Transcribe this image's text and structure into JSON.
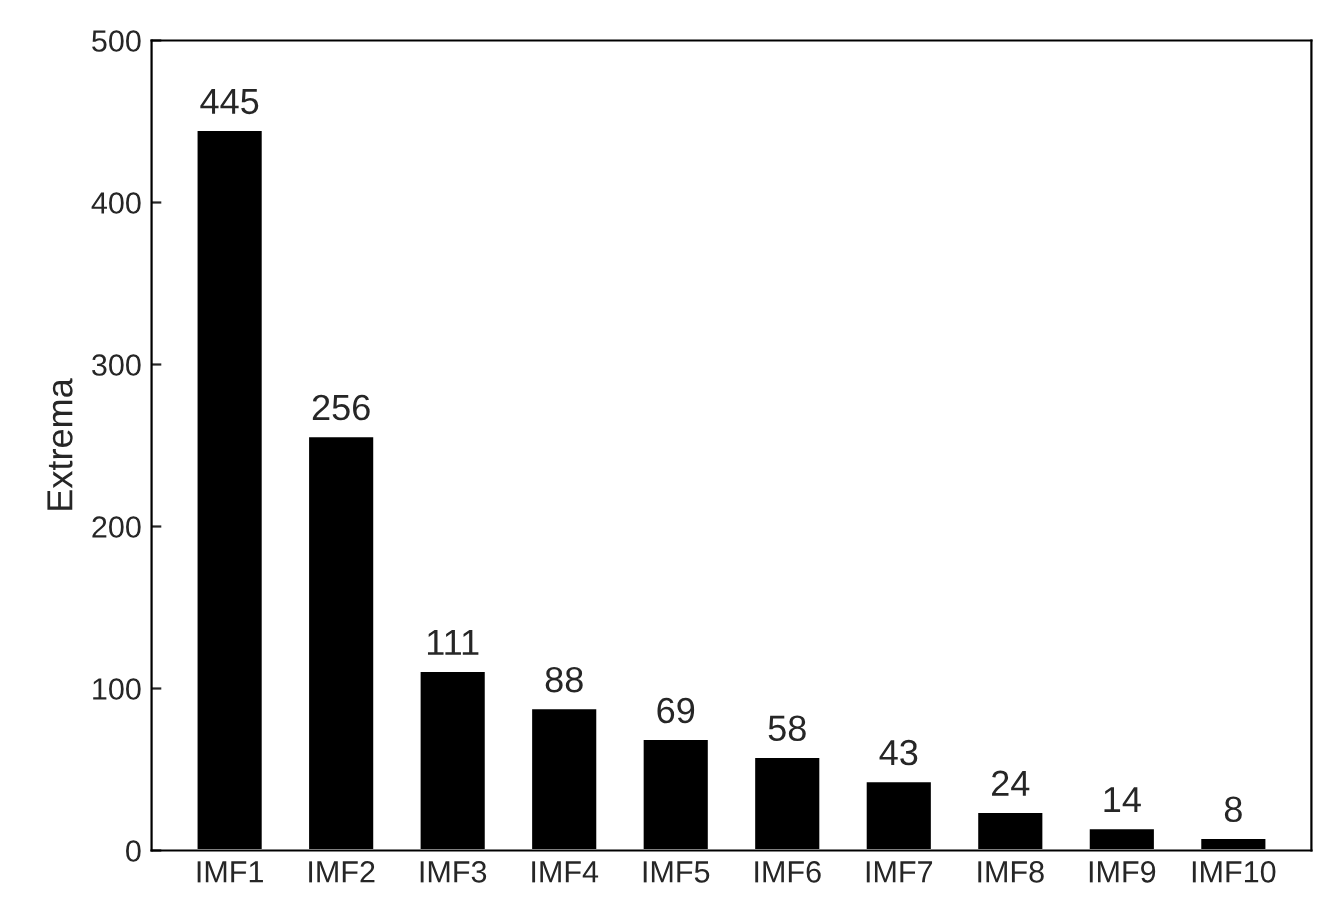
{
  "chart_data": {
    "type": "bar",
    "ylabel": "Extrema",
    "categories": [
      "IMF1",
      "IMF2",
      "IMF3",
      "IMF4",
      "IMF5",
      "IMF6",
      "IMF7",
      "IMF8",
      "IMF9",
      "IMF10"
    ],
    "values": [
      445,
      256,
      111,
      88,
      69,
      58,
      43,
      24,
      14,
      8
    ],
    "color": "#000000",
    "ylim": [
      0,
      500
    ],
    "yticks": [
      0,
      100,
      200,
      300,
      400,
      500
    ],
    "data_labels": true,
    "grid": false,
    "legend": false
  }
}
